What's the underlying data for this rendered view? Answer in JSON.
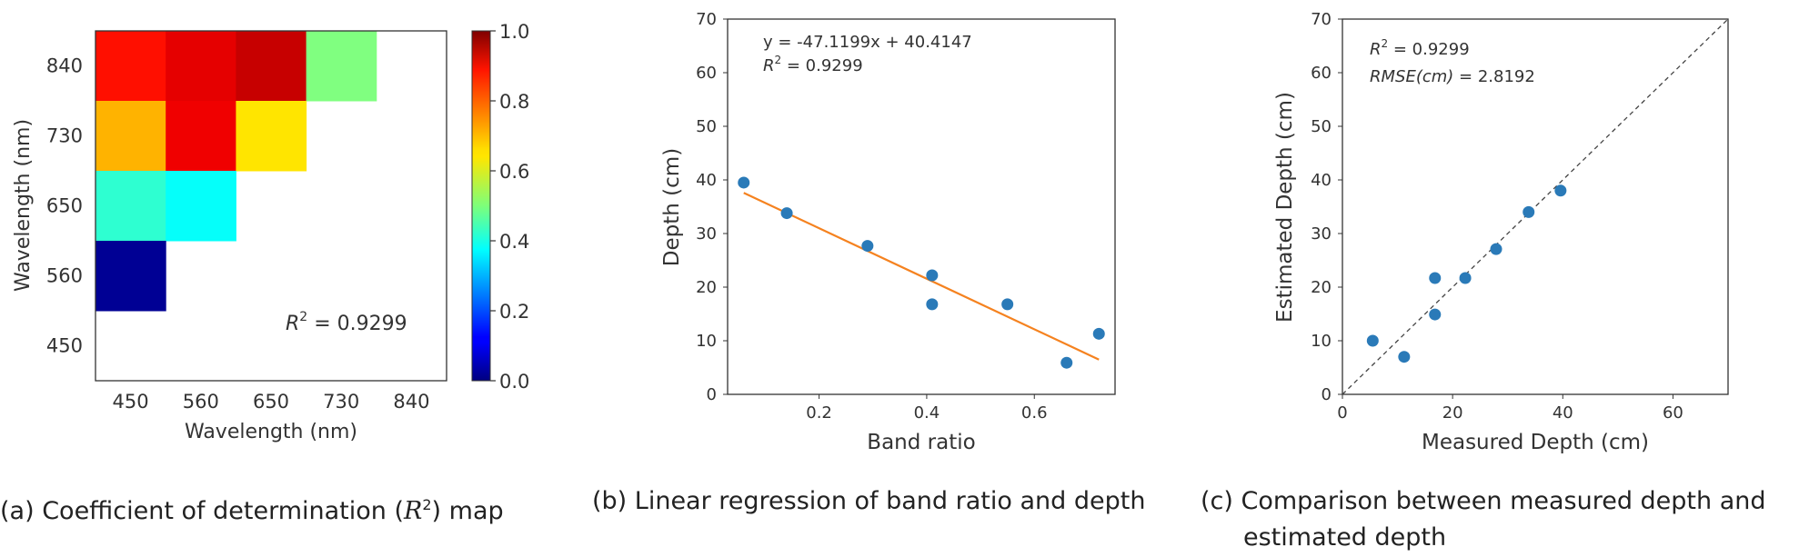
{
  "chart_data": [
    {
      "type": "heatmap",
      "caption_prefix": "(a) Coefficient of determination (",
      "caption_math_base": "R",
      "caption_math_sup": "2",
      "caption_suffix": ") map",
      "xlabel": "Wavelength (nm)",
      "ylabel": "Wavelength (nm)",
      "x_categories": [
        "450",
        "560",
        "650",
        "730",
        "840"
      ],
      "y_categories": [
        "840",
        "730",
        "650",
        "560",
        "450"
      ],
      "colormap": "jet",
      "value_range": [
        0.0,
        1.0
      ],
      "colorbar_ticks": [
        "0.0",
        "0.2",
        "0.4",
        "0.6",
        "0.8",
        "1.0"
      ],
      "cells": [
        {
          "x": "450",
          "y": "840",
          "value": 0.86
        },
        {
          "x": "560",
          "y": "840",
          "value": 0.9
        },
        {
          "x": "650",
          "y": "840",
          "value": 0.9299
        },
        {
          "x": "730",
          "y": "840",
          "value": 0.5
        },
        {
          "x": "450",
          "y": "730",
          "value": 0.7
        },
        {
          "x": "560",
          "y": "730",
          "value": 0.89
        },
        {
          "x": "650",
          "y": "730",
          "value": 0.65
        },
        {
          "x": "450",
          "y": "650",
          "value": 0.42
        },
        {
          "x": "560",
          "y": "650",
          "value": 0.38
        },
        {
          "x": "450",
          "y": "560",
          "value": 0.02
        }
      ],
      "annotation": {
        "label": "R",
        "sup": "2",
        "text": " = 0.9299"
      }
    },
    {
      "type": "scatter",
      "caption": "(b) Linear regression of band ratio and depth",
      "xlabel": "Band ratio",
      "ylabel": "Depth (cm)",
      "xlim": [
        0.03,
        0.75
      ],
      "ylim": [
        0,
        70
      ],
      "xticks": [
        0.2,
        0.4,
        0.6
      ],
      "yticks": [
        0,
        10,
        20,
        30,
        40,
        50,
        60,
        70
      ],
      "points": [
        {
          "x": 0.06,
          "y": 39.5
        },
        {
          "x": 0.14,
          "y": 33.8
        },
        {
          "x": 0.29,
          "y": 27.7
        },
        {
          "x": 0.41,
          "y": 22.2
        },
        {
          "x": 0.41,
          "y": 16.8
        },
        {
          "x": 0.55,
          "y": 16.8
        },
        {
          "x": 0.66,
          "y": 5.9
        },
        {
          "x": 0.72,
          "y": 11.3
        }
      ],
      "fit_line": {
        "slope": -47.1199,
        "intercept": 40.4147,
        "x_range": [
          0.06,
          0.72
        ]
      },
      "equation": "y = -47.1199x + 40.4147",
      "r2_label": "R",
      "r2_sup": "2",
      "r2_text": " = 0.9299",
      "colors": {
        "points": "#2a7ab8",
        "line": "#f5821f"
      }
    },
    {
      "type": "scatter",
      "caption_line1": "(c) Comparison between measured depth and",
      "caption_line2": "estimated depth",
      "xlabel": "Measured Depth (cm)",
      "ylabel": "Estimated Depth (cm)",
      "xlim": [
        0,
        70
      ],
      "ylim": [
        0,
        70
      ],
      "xticks": [
        0,
        20,
        40,
        60
      ],
      "yticks": [
        0,
        10,
        20,
        30,
        40,
        50,
        60,
        70
      ],
      "points": [
        {
          "x": 5.5,
          "y": 10.0
        },
        {
          "x": 11.2,
          "y": 7.0
        },
        {
          "x": 16.8,
          "y": 21.7
        },
        {
          "x": 16.8,
          "y": 14.9
        },
        {
          "x": 22.3,
          "y": 21.7
        },
        {
          "x": 27.9,
          "y": 27.1
        },
        {
          "x": 33.8,
          "y": 34.0
        },
        {
          "x": 39.6,
          "y": 38.0
        }
      ],
      "identity_line": true,
      "r2_label": "R",
      "r2_sup": "2",
      "r2_text": " = 0.9299",
      "rmse_label": "RMSE(cm)",
      "rmse_text": " = 2.8192",
      "colors": {
        "points": "#2a7ab8",
        "line": "#444444"
      }
    }
  ]
}
